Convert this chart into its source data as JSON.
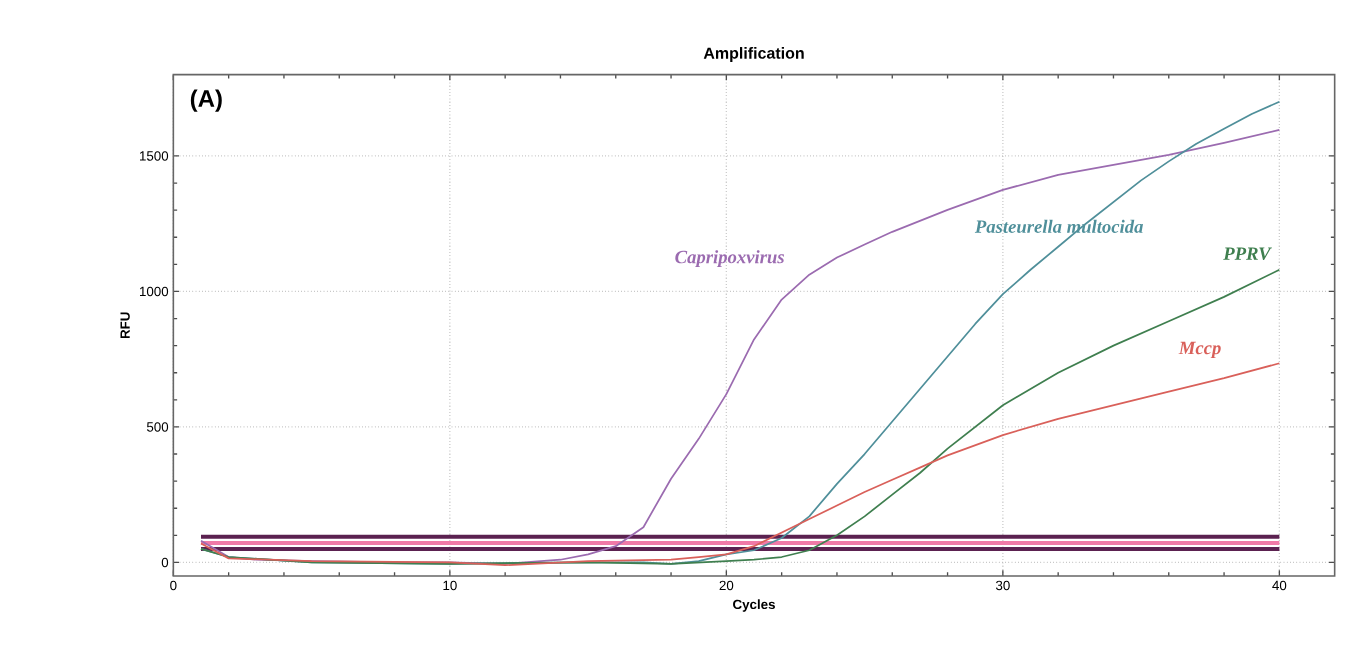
{
  "chart_data": {
    "type": "line",
    "title": "Amplification",
    "xlabel": "Cycles",
    "ylabel": "RFU",
    "xlim": [
      0,
      42
    ],
    "ylim": [
      -50,
      1800
    ],
    "xticks": [
      0,
      10,
      20,
      30,
      40
    ],
    "yticks": [
      0,
      500,
      1000,
      1500
    ],
    "grid": true,
    "marker": "none",
    "line_style": "solid",
    "annotations": [
      "(A)"
    ],
    "ref_lines": [
      {
        "axis": "y",
        "value": 95,
        "color": "#5b2150"
      },
      {
        "axis": "y",
        "value": 72,
        "color": "#f07aa8"
      },
      {
        "axis": "y",
        "value": 50,
        "color": "#5b2150"
      }
    ],
    "series": [
      {
        "name": "Capripoxvirus",
        "color": "#9b6bb0",
        "x": [
          1,
          2,
          3,
          5,
          8,
          10,
          12,
          14,
          15,
          16,
          17,
          18,
          19,
          20,
          21,
          22,
          23,
          24,
          25,
          26,
          28,
          30,
          32,
          34,
          36,
          38,
          40
        ],
        "values": [
          80,
          20,
          10,
          5,
          0,
          0,
          -5,
          10,
          30,
          60,
          130,
          309,
          456,
          621,
          823,
          970,
          1062,
          1125,
          1173,
          1220,
          1301,
          1375,
          1430,
          1467,
          1504,
          1548,
          1596
        ]
      },
      {
        "name": "Pasteurella multocida",
        "color": "#4f8f9a",
        "x": [
          1,
          2,
          5,
          10,
          15,
          17,
          18,
          19,
          20,
          21,
          22,
          23,
          24,
          25,
          26,
          27,
          28,
          29,
          30,
          31,
          32,
          33,
          34,
          35,
          36,
          37,
          38,
          39,
          40
        ],
        "values": [
          50,
          20,
          0,
          -5,
          0,
          0,
          -5,
          5,
          30,
          45,
          90,
          170,
          290,
          400,
          520,
          640,
          760,
          880,
          990,
          1080,
          1165,
          1250,
          1330,
          1410,
          1480,
          1545,
          1600,
          1655,
          1700
        ]
      },
      {
        "name": "PPRV",
        "color": "#3f7f4f",
        "x": [
          1,
          2,
          5,
          10,
          15,
          18,
          20,
          21,
          22,
          23,
          24,
          25,
          26,
          27,
          28,
          29,
          30,
          32,
          34,
          36,
          38,
          40
        ],
        "values": [
          50,
          20,
          0,
          -5,
          0,
          -5,
          5,
          10,
          20,
          45,
          100,
          170,
          250,
          330,
          420,
          500,
          580,
          700,
          800,
          890,
          980,
          1080
        ]
      },
      {
        "name": "Mccp",
        "color": "#d9605a",
        "x": [
          1,
          2,
          5,
          10,
          12,
          15,
          18,
          19,
          20,
          21,
          22,
          23,
          24,
          25,
          26,
          27,
          28,
          30,
          32,
          34,
          36,
          38,
          40
        ],
        "values": [
          70,
          15,
          5,
          0,
          -10,
          5,
          10,
          20,
          30,
          60,
          110,
          160,
          210,
          260,
          305,
          350,
          395,
          470,
          530,
          580,
          630,
          680,
          735
        ]
      }
    ]
  }
}
